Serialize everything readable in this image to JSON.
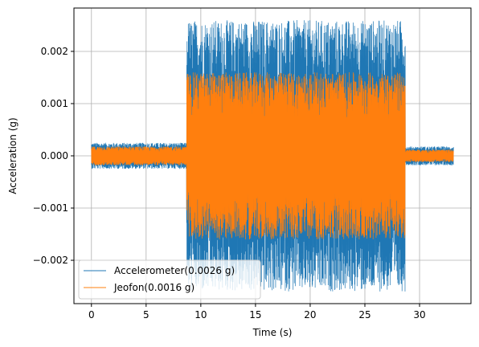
{
  "chart_data": {
    "type": "line",
    "title": "",
    "xlabel": "Time (s)",
    "ylabel": "Acceleration (g)",
    "xlim": [
      -1.6,
      34.7
    ],
    "ylim": [
      -0.00283,
      0.00283
    ],
    "xticks": [
      0,
      5,
      10,
      15,
      20,
      25,
      30
    ],
    "xtick_labels": [
      "0",
      "5",
      "10",
      "15",
      "20",
      "25",
      "30"
    ],
    "yticks": [
      -0.002,
      -0.001,
      0.0,
      0.001,
      0.002
    ],
    "ytick_labels": [
      "−0.002",
      "−0.001",
      "0.000",
      "0.001",
      "0.002"
    ],
    "grid": true,
    "legend_position": "lower-left",
    "series": [
      {
        "name": "Accelerometer(0.0026 g)",
        "color": "#1f77b4",
        "envelope": [
          {
            "t_start": 0.0,
            "t_end": 8.7,
            "amplitude": 0.00025
          },
          {
            "t_start": 8.7,
            "t_end": 28.7,
            "amplitude": 0.0026
          },
          {
            "t_start": 28.7,
            "t_end": 33.1,
            "amplitude": 0.00018
          }
        ]
      },
      {
        "name": "Jeofon(0.0016 g)",
        "color": "#ff7f0e",
        "envelope": [
          {
            "t_start": 0.0,
            "t_end": 8.7,
            "amplitude": 0.00018
          },
          {
            "t_start": 8.7,
            "t_end": 28.7,
            "amplitude": 0.0016
          },
          {
            "t_start": 28.7,
            "t_end": 33.1,
            "amplitude": 0.00012
          }
        ]
      }
    ]
  }
}
